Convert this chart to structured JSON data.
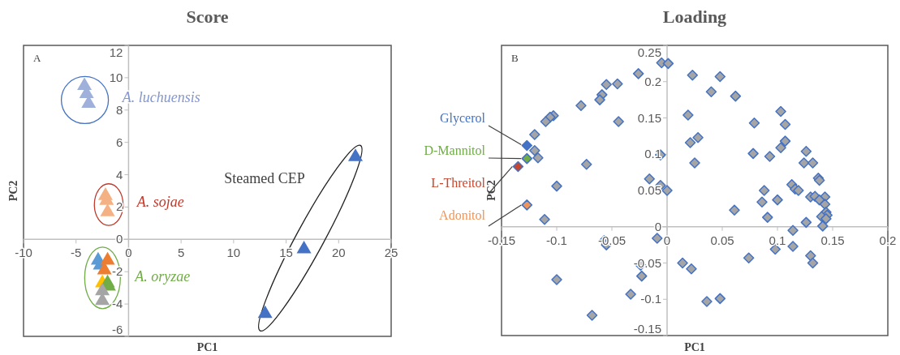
{
  "chart_data": [
    {
      "type": "scatter",
      "title": "Score",
      "xlabel": "PC1",
      "ylabel": "PC2",
      "marker": "triangle",
      "legend": false,
      "grid": false,
      "xlim": [
        -10,
        25
      ],
      "ylim": [
        -6,
        12
      ],
      "xticks": [
        -10,
        -5,
        0,
        5,
        10,
        15,
        20,
        25
      ],
      "yticks": [
        -6,
        -4,
        -2,
        0,
        2,
        4,
        6,
        8,
        10,
        12
      ],
      "annotations": [
        "A",
        "A. luchuensis",
        "A. sojae",
        "A. oryzae",
        "Steamed CEP"
      ],
      "series": [
        {
          "color": "#9fb0da",
          "x": [
            -4.2,
            -4.0,
            -3.8
          ],
          "values": [
            9.5,
            9.0,
            8.4
          ]
        },
        {
          "color": "#f4b183",
          "x": [
            -2.2,
            -2.1,
            -2.0
          ],
          "values": [
            2.7,
            2.4,
            1.7
          ]
        },
        {
          "color": "#5b9bd5",
          "x": [
            -2.9,
            -2.7
          ],
          "values": [
            -1.3,
            -1.6
          ]
        },
        {
          "color": "#ed7d31",
          "x": [
            -2.0,
            -2.3
          ],
          "values": [
            -1.3,
            -1.9
          ]
        },
        {
          "color": "#ffc000",
          "x": [
            -2.5
          ],
          "values": [
            -2.7
          ]
        },
        {
          "color": "#70ad47",
          "x": [
            -2.0,
            -1.9
          ],
          "values": [
            -2.7,
            -2.9
          ]
        },
        {
          "color": "#a5a5a5",
          "x": [
            -2.5,
            -2.5
          ],
          "values": [
            -3.2,
            -3.8
          ]
        },
        {
          "color": "#4472c4",
          "x": [
            21.6,
            16.7,
            13.0
          ],
          "values": [
            5.1,
            -0.6,
            -4.6
          ]
        }
      ]
    },
    {
      "type": "scatter",
      "title": "Loading",
      "xlabel": "PC1",
      "ylabel": "PC2",
      "marker": "diamond",
      "legend": false,
      "grid": false,
      "xlim": [
        -0.15,
        0.2
      ],
      "ylim": [
        -0.15,
        0.25
      ],
      "xticks": [
        -0.15,
        -0.1,
        -0.05,
        0,
        0.05,
        0.1,
        0.15,
        0.2
      ],
      "yticks": [
        -0.15,
        -0.1,
        -0.05,
        0,
        0.05,
        0.1,
        0.15,
        0.2,
        0.25
      ],
      "annotations": [
        "B"
      ],
      "series": [
        {
          "color": "#a5a5a5",
          "x": [
            -0.005,
            0.001,
            -0.026,
            -0.045,
            -0.055,
            -0.059,
            -0.061,
            -0.078,
            -0.044,
            -0.103,
            -0.106,
            -0.11,
            -0.12,
            -0.12,
            -0.117,
            -0.073,
            -0.006,
            -0.016,
            -0.006,
            0.0,
            -0.1,
            -0.111,
            -0.057,
            -0.055,
            -0.009,
            -0.024,
            -0.023,
            -0.033,
            -0.1,
            -0.068,
            0.014,
            0.022,
            0.023,
            0.048,
            0.04,
            0.062,
            0.019,
            0.103,
            0.079,
            0.107,
            0.028,
            0.021,
            0.107,
            0.103,
            0.025,
            0.078,
            0.093,
            0.126,
            0.124,
            0.132,
            0.137,
            0.138,
            0.088,
            0.113,
            0.116,
            0.119,
            0.086,
            0.1,
            0.13,
            0.134,
            0.143,
            0.138,
            0.143,
            0.061,
            0.091,
            0.126,
            0.141,
            0.144,
            0.145,
            0.14,
            0.144,
            0.114,
            0.114,
            0.098,
            0.074,
            0.13,
            0.132,
            0.036,
            0.048
          ],
          "values": [
            0.226,
            0.225,
            0.211,
            0.197,
            0.196,
            0.182,
            0.175,
            0.167,
            0.145,
            0.153,
            0.151,
            0.145,
            0.127,
            0.105,
            0.095,
            0.086,
            0.099,
            0.066,
            0.057,
            0.05,
            0.056,
            0.01,
            -0.019,
            -0.025,
            -0.016,
            -0.053,
            -0.068,
            -0.093,
            -0.073,
            -0.122,
            -0.05,
            -0.058,
            0.209,
            0.207,
            0.186,
            0.18,
            0.154,
            0.159,
            0.143,
            0.141,
            0.123,
            0.116,
            0.118,
            0.109,
            0.088,
            0.101,
            0.097,
            0.104,
            0.088,
            0.088,
            0.067,
            0.064,
            0.05,
            0.058,
            0.052,
            0.05,
            0.034,
            0.037,
            0.041,
            0.042,
            0.041,
            0.037,
            0.031,
            0.023,
            0.013,
            0.006,
            0.001,
            0.02,
            0.016,
            0.014,
            0.011,
            -0.005,
            -0.027,
            -0.031,
            -0.043,
            -0.04,
            -0.05,
            -0.103,
            -0.099
          ]
        },
        {
          "name": "Glycerol",
          "color": "#4472c4",
          "x": [
            -0.127
          ],
          "values": [
            0.112
          ]
        },
        {
          "name": "D-Mannitol",
          "color": "#70ad47",
          "x": [
            -0.127
          ],
          "values": [
            0.094
          ]
        },
        {
          "name": "L-Threitol",
          "color": "#c9452c",
          "x": [
            -0.135
          ],
          "values": [
            0.083
          ]
        },
        {
          "name": "Adonitol",
          "color": "#f0955a",
          "x": [
            -0.127
          ],
          "values": [
            0.03
          ]
        }
      ]
    }
  ]
}
